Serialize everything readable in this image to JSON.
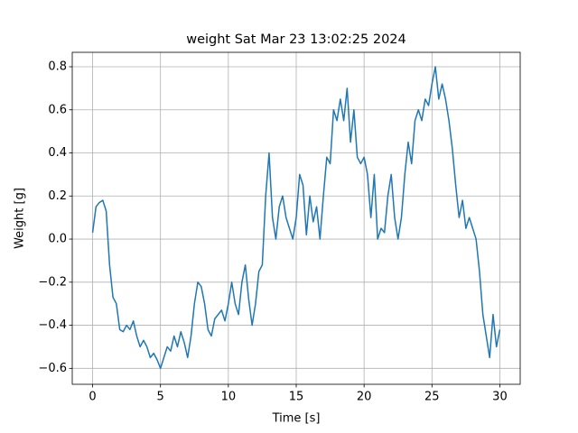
{
  "chart_data": {
    "type": "line",
    "title": "weight Sat Mar 23 13:02:25 2024",
    "xlabel": "Time [s]",
    "ylabel": "Weight [g]",
    "x": [
      0,
      0.25,
      0.5,
      0.75,
      1,
      1.25,
      1.5,
      1.75,
      2,
      2.25,
      2.5,
      2.75,
      3,
      3.25,
      3.5,
      3.75,
      4,
      4.25,
      4.5,
      4.75,
      5,
      5.25,
      5.5,
      5.75,
      6,
      6.25,
      6.5,
      6.75,
      7,
      7.25,
      7.5,
      7.75,
      8,
      8.25,
      8.5,
      8.75,
      9,
      9.25,
      9.5,
      9.75,
      10,
      10.25,
      10.5,
      10.75,
      11,
      11.25,
      11.5,
      11.75,
      12,
      12.25,
      12.5,
      12.75,
      13,
      13.25,
      13.5,
      13.75,
      14,
      14.25,
      14.5,
      14.75,
      15,
      15.25,
      15.5,
      15.75,
      16,
      16.25,
      16.5,
      16.75,
      17,
      17.25,
      17.5,
      17.75,
      18,
      18.25,
      18.5,
      18.75,
      19,
      19.25,
      19.5,
      19.75,
      20,
      20.25,
      20.5,
      20.75,
      21,
      21.25,
      21.5,
      21.75,
      22,
      22.25,
      22.5,
      22.75,
      23,
      23.25,
      23.5,
      23.75,
      24,
      24.25,
      24.5,
      24.75,
      25,
      25.25,
      25.5,
      25.75,
      26,
      26.25,
      26.5,
      26.75,
      27,
      27.25,
      27.5,
      27.75,
      28,
      28.25,
      28.5,
      28.75,
      29,
      29.25,
      29.5,
      29.75,
      30
    ],
    "values": [
      0.03,
      0.15,
      0.17,
      0.18,
      0.13,
      -0.12,
      -0.27,
      -0.3,
      -0.42,
      -0.43,
      -0.4,
      -0.42,
      -0.38,
      -0.45,
      -0.5,
      -0.47,
      -0.5,
      -0.55,
      -0.53,
      -0.56,
      -0.6,
      -0.55,
      -0.5,
      -0.52,
      -0.45,
      -0.5,
      -0.43,
      -0.48,
      -0.55,
      -0.45,
      -0.3,
      -0.2,
      -0.22,
      -0.3,
      -0.42,
      -0.45,
      -0.37,
      -0.35,
      -0.33,
      -0.38,
      -0.3,
      -0.2,
      -0.3,
      -0.35,
      -0.2,
      -0.12,
      -0.28,
      -0.4,
      -0.3,
      -0.15,
      -0.12,
      0.2,
      0.4,
      0.1,
      0.0,
      0.15,
      0.2,
      0.1,
      0.05,
      0.0,
      0.1,
      0.3,
      0.25,
      0.02,
      0.2,
      0.08,
      0.15,
      0.0,
      0.2,
      0.38,
      0.35,
      0.6,
      0.55,
      0.65,
      0.55,
      0.7,
      0.45,
      0.6,
      0.38,
      0.35,
      0.38,
      0.3,
      0.1,
      0.3,
      0.0,
      0.05,
      0.03,
      0.2,
      0.3,
      0.1,
      0.0,
      0.1,
      0.3,
      0.45,
      0.35,
      0.55,
      0.6,
      0.55,
      0.65,
      0.62,
      0.72,
      0.8,
      0.65,
      0.72,
      0.65,
      0.55,
      0.42,
      0.25,
      0.1,
      0.18,
      0.05,
      0.1,
      0.05,
      0.0,
      -0.15,
      -0.35,
      -0.45,
      -0.55,
      -0.35,
      -0.5,
      -0.42
    ],
    "color": "#1f77b4",
    "xlim": [
      -1.5,
      31.5
    ],
    "xticks": [
      0,
      5,
      10,
      15,
      20,
      25,
      30
    ],
    "ylim": [
      -0.674,
      0.867
    ],
    "yticks": [
      {
        "value": -0.6,
        "label": "−0.6"
      },
      {
        "value": -0.4,
        "label": "−0.4"
      },
      {
        "value": -0.2,
        "label": "−0.2"
      },
      {
        "value": 0,
        "label": "0.0"
      },
      0.2,
      0.4,
      0.6,
      0.8
    ],
    "grid": true
  }
}
